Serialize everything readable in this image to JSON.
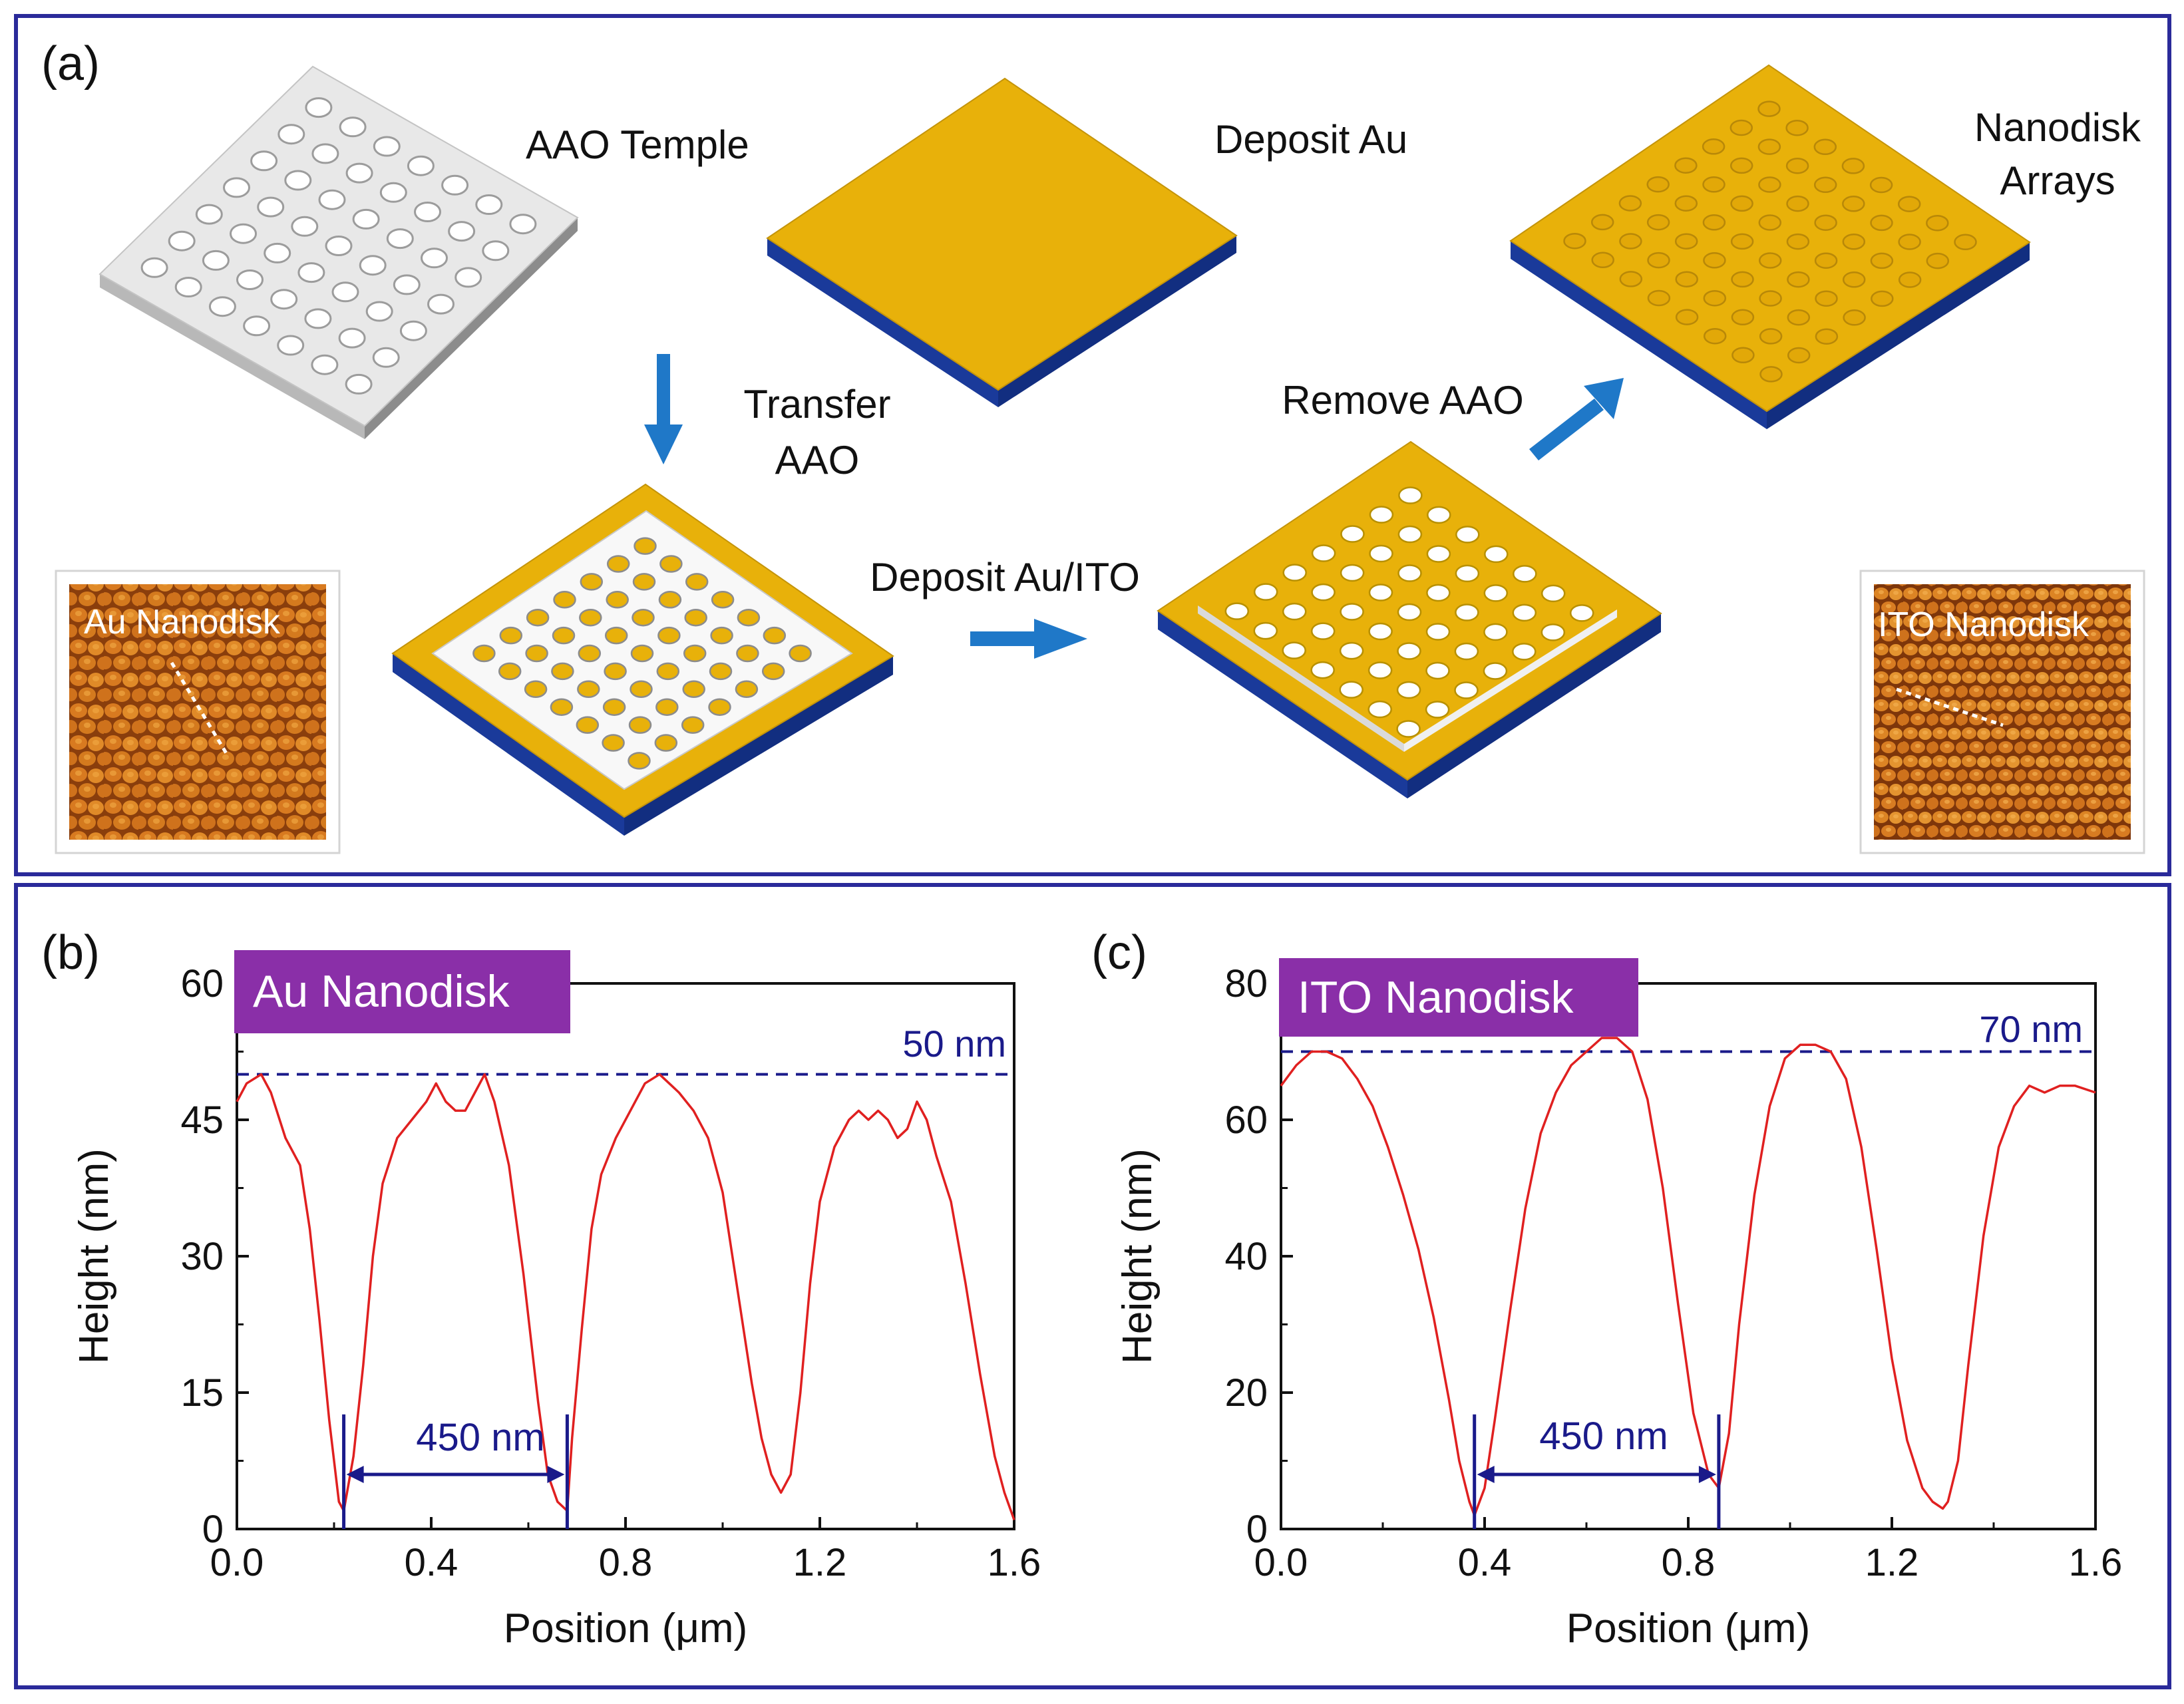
{
  "panel_a": {
    "tag": "(a)",
    "aao_temple": "AAO Temple",
    "deposit_au": "Deposit Au",
    "nanodisk_line1": "Nanodisk",
    "nanodisk_line2": "Arrays",
    "transfer_line1": "Transfer",
    "transfer_line2": "AAO",
    "remove_aao": "Remove AAO",
    "deposit_au_ito": "Deposit Au/ITO",
    "afm_au_label": "Au Nanodisk",
    "afm_ito_label": "ITO Nanodisk"
  },
  "colors": {
    "frame": "#2a2a9a",
    "gold": "#e8b10a",
    "blue_base": "#1a3a9a",
    "arrow": "#1f78c8",
    "curve": "#e02020",
    "annot": "#1a1a8a",
    "tag_bg": "#8a2fa8",
    "afm_bg": "#8a3e0c"
  },
  "chart_data": [
    {
      "panel": "(b)",
      "type": "line",
      "tag": "Au Nanodisk",
      "xlabel": "Position (μm)",
      "ylabel": "Height (nm)",
      "xlim": [
        0,
        1.6
      ],
      "ylim": [
        0,
        60
      ],
      "xticks": [
        "0.0",
        "0.4",
        "0.8",
        "1.2",
        "1.6"
      ],
      "yticks": [
        "0",
        "15",
        "30",
        "45",
        "60"
      ],
      "dashed_y": 50,
      "dashed_label": "50 nm",
      "span": {
        "x1": 0.22,
        "x2": 0.68,
        "label": "450 nm"
      },
      "x": [
        0.0,
        0.02,
        0.05,
        0.07,
        0.1,
        0.13,
        0.15,
        0.17,
        0.19,
        0.21,
        0.22,
        0.24,
        0.26,
        0.28,
        0.3,
        0.33,
        0.36,
        0.39,
        0.41,
        0.43,
        0.45,
        0.47,
        0.49,
        0.51,
        0.53,
        0.56,
        0.59,
        0.62,
        0.64,
        0.66,
        0.68,
        0.69,
        0.71,
        0.73,
        0.75,
        0.78,
        0.81,
        0.84,
        0.87,
        0.89,
        0.91,
        0.94,
        0.97,
        1.0,
        1.02,
        1.04,
        1.06,
        1.08,
        1.1,
        1.12,
        1.14,
        1.16,
        1.18,
        1.2,
        1.23,
        1.26,
        1.28,
        1.3,
        1.32,
        1.34,
        1.36,
        1.38,
        1.4,
        1.42,
        1.44,
        1.47,
        1.5,
        1.53,
        1.56,
        1.58,
        1.6
      ],
      "y": [
        47,
        49,
        50,
        48,
        43,
        40,
        33,
        23,
        12,
        3,
        2,
        8,
        18,
        30,
        38,
        43,
        45,
        47,
        49,
        47,
        46,
        46,
        48,
        50,
        47,
        40,
        28,
        14,
        6,
        3,
        2,
        10,
        22,
        33,
        39,
        43,
        46,
        49,
        50,
        49,
        48,
        46,
        43,
        37,
        30,
        23,
        16,
        10,
        6,
        4,
        6,
        15,
        27,
        36,
        42,
        45,
        46,
        45,
        46,
        45,
        43,
        44,
        47,
        45,
        41,
        36,
        27,
        17,
        8,
        4,
        1
      ]
    },
    {
      "panel": "(c)",
      "type": "line",
      "tag": "ITO Nanodisk",
      "xlabel": "Position (μm)",
      "ylabel": "Height (nm)",
      "xlim": [
        0,
        1.6
      ],
      "ylim": [
        0,
        80
      ],
      "xticks": [
        "0.0",
        "0.4",
        "0.8",
        "1.2",
        "1.6"
      ],
      "yticks": [
        "0",
        "20",
        "40",
        "60",
        "80"
      ],
      "dashed_y": 70,
      "dashed_label": "70 nm",
      "span": {
        "x1": 0.38,
        "x2": 0.86,
        "label": "450 nm"
      },
      "x": [
        0.0,
        0.03,
        0.06,
        0.09,
        0.12,
        0.15,
        0.18,
        0.21,
        0.24,
        0.27,
        0.3,
        0.33,
        0.35,
        0.37,
        0.38,
        0.4,
        0.42,
        0.45,
        0.48,
        0.51,
        0.54,
        0.57,
        0.6,
        0.63,
        0.66,
        0.69,
        0.72,
        0.75,
        0.78,
        0.81,
        0.84,
        0.86,
        0.88,
        0.9,
        0.93,
        0.96,
        0.99,
        1.02,
        1.05,
        1.08,
        1.11,
        1.14,
        1.17,
        1.2,
        1.23,
        1.26,
        1.28,
        1.3,
        1.31,
        1.33,
        1.35,
        1.38,
        1.41,
        1.44,
        1.47,
        1.5,
        1.53,
        1.56,
        1.6
      ],
      "y": [
        65,
        68,
        70,
        70,
        69,
        66,
        62,
        56,
        49,
        41,
        31,
        19,
        10,
        4,
        2,
        6,
        16,
        32,
        47,
        58,
        64,
        68,
        70,
        72,
        72,
        70,
        63,
        50,
        33,
        17,
        8,
        6,
        14,
        30,
        49,
        62,
        69,
        71,
        71,
        70,
        66,
        56,
        41,
        25,
        13,
        6,
        4,
        3,
        4,
        10,
        24,
        43,
        56,
        62,
        65,
        64,
        65,
        65,
        64
      ]
    }
  ]
}
